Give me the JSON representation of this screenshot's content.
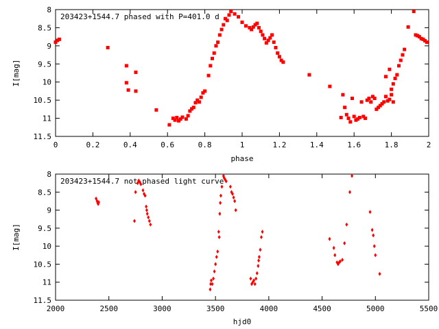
{
  "chart_data": [
    {
      "type": "scatter",
      "title": "203423+1544.7 phased with P=401.0 d",
      "xlabel": "phase",
      "ylabel": "I[mag]",
      "xlim": [
        0,
        2
      ],
      "ylim": [
        11.5,
        8
      ],
      "y_inverted": true,
      "xticks": [
        "0",
        "0.2",
        "0.4",
        "0.6",
        "0.8",
        "1",
        "1.2",
        "1.4",
        "1.6",
        "1.8",
        "2"
      ],
      "yticks": [
        "8",
        "8.5",
        "9",
        "9.5",
        "10",
        "10.5",
        "11",
        "11.5"
      ],
      "color": "#ff0000",
      "grid": false,
      "points": [
        [
          0.0,
          8.9
        ],
        [
          0.01,
          8.85
        ],
        [
          0.02,
          8.82
        ],
        [
          0.28,
          9.05
        ],
        [
          0.38,
          9.55
        ],
        [
          0.38,
          10.02
        ],
        [
          0.39,
          10.22
        ],
        [
          0.43,
          9.73
        ],
        [
          0.43,
          10.25
        ],
        [
          0.54,
          10.77
        ],
        [
          0.61,
          11.18
        ],
        [
          0.63,
          11.0
        ],
        [
          0.64,
          11.05
        ],
        [
          0.65,
          10.98
        ],
        [
          0.66,
          11.07
        ],
        [
          0.67,
          11.02
        ],
        [
          0.68,
          10.97
        ],
        [
          0.7,
          11.02
        ],
        [
          0.71,
          10.93
        ],
        [
          0.72,
          10.8
        ],
        [
          0.73,
          10.74
        ],
        [
          0.74,
          10.7
        ],
        [
          0.75,
          10.57
        ],
        [
          0.76,
          10.5
        ],
        [
          0.77,
          10.55
        ],
        [
          0.78,
          10.42
        ],
        [
          0.79,
          10.3
        ],
        [
          0.8,
          10.25
        ],
        [
          0.82,
          9.82
        ],
        [
          0.83,
          9.55
        ],
        [
          0.84,
          9.35
        ],
        [
          0.85,
          9.2
        ],
        [
          0.86,
          9.0
        ],
        [
          0.87,
          8.9
        ],
        [
          0.88,
          8.7
        ],
        [
          0.89,
          8.55
        ],
        [
          0.9,
          8.42
        ],
        [
          0.91,
          8.25
        ],
        [
          0.92,
          8.3
        ],
        [
          0.93,
          8.15
        ],
        [
          0.94,
          8.05
        ],
        [
          0.96,
          8.12
        ],
        [
          0.98,
          8.2
        ],
        [
          1.0,
          8.35
        ],
        [
          1.02,
          8.45
        ],
        [
          1.04,
          8.5
        ],
        [
          1.05,
          8.55
        ],
        [
          1.06,
          8.48
        ],
        [
          1.07,
          8.42
        ],
        [
          1.08,
          8.38
        ],
        [
          1.09,
          8.5
        ],
        [
          1.1,
          8.6
        ],
        [
          1.11,
          8.7
        ],
        [
          1.12,
          8.8
        ],
        [
          1.13,
          8.92
        ],
        [
          1.14,
          8.85
        ],
        [
          1.15,
          8.78
        ],
        [
          1.16,
          8.7
        ],
        [
          1.17,
          8.9
        ],
        [
          1.18,
          9.05
        ],
        [
          1.19,
          9.2
        ],
        [
          1.2,
          9.3
        ],
        [
          1.21,
          9.4
        ],
        [
          1.22,
          9.45
        ],
        [
          1.36,
          9.8
        ],
        [
          1.47,
          10.12
        ],
        [
          1.53,
          10.98
        ],
        [
          1.54,
          10.35
        ],
        [
          1.55,
          10.7
        ],
        [
          1.56,
          10.9
        ],
        [
          1.57,
          11.0
        ],
        [
          1.58,
          11.1
        ],
        [
          1.59,
          10.45
        ],
        [
          1.6,
          10.95
        ],
        [
          1.61,
          11.05
        ],
        [
          1.62,
          11.02
        ],
        [
          1.63,
          10.98
        ],
        [
          1.64,
          10.55
        ],
        [
          1.65,
          10.95
        ],
        [
          1.66,
          11.0
        ],
        [
          1.67,
          10.5
        ],
        [
          1.68,
          10.45
        ],
        [
          1.69,
          10.55
        ],
        [
          1.7,
          10.4
        ],
        [
          1.71,
          10.45
        ],
        [
          1.72,
          10.75
        ],
        [
          1.73,
          10.7
        ],
        [
          1.74,
          10.65
        ],
        [
          1.75,
          10.6
        ],
        [
          1.76,
          10.55
        ],
        [
          1.77,
          10.4
        ],
        [
          1.78,
          10.52
        ],
        [
          1.79,
          10.48
        ],
        [
          1.8,
          10.2
        ],
        [
          1.81,
          10.05
        ],
        [
          1.82,
          9.9
        ],
        [
          1.83,
          9.8
        ],
        [
          1.77,
          9.85
        ],
        [
          1.79,
          9.65
        ],
        [
          1.8,
          10.35
        ],
        [
          1.81,
          10.55
        ],
        [
          1.84,
          9.55
        ],
        [
          1.85,
          9.4
        ],
        [
          1.86,
          9.25
        ],
        [
          1.87,
          9.1
        ],
        [
          1.89,
          8.48
        ],
        [
          1.92,
          8.05
        ],
        [
          1.93,
          8.7
        ],
        [
          1.94,
          8.72
        ],
        [
          1.95,
          8.75
        ],
        [
          1.96,
          8.8
        ],
        [
          1.97,
          8.82
        ],
        [
          1.98,
          8.86
        ],
        [
          1.99,
          8.9
        ]
      ]
    },
    {
      "type": "scatter",
      "title": "203423+1544.7 not phased light curve",
      "xlabel": "hjd0",
      "ylabel": "I[mag]",
      "xlim": [
        2000,
        5500
      ],
      "ylim": [
        11.5,
        8
      ],
      "y_inverted": true,
      "xticks": [
        "2000",
        "2500",
        "3000",
        "3500",
        "4000",
        "4500",
        "5000",
        "5500"
      ],
      "yticks": [
        "8",
        "8.5",
        "9",
        "9.5",
        "10",
        "10.5",
        "11",
        "11.5"
      ],
      "color": "#ff0000",
      "grid": false,
      "points": [
        [
          2380,
          8.68
        ],
        [
          2390,
          8.75
        ],
        [
          2395,
          8.8
        ],
        [
          2400,
          8.83
        ],
        [
          2405,
          8.78
        ],
        [
          2740,
          9.3
        ],
        [
          2750,
          8.5
        ],
        [
          2770,
          8.25
        ],
        [
          2780,
          8.18
        ],
        [
          2790,
          8.22
        ],
        [
          2800,
          8.28
        ],
        [
          2820,
          8.45
        ],
        [
          2830,
          8.55
        ],
        [
          2840,
          8.6
        ],
        [
          2850,
          8.9
        ],
        [
          2855,
          9.0
        ],
        [
          2860,
          9.1
        ],
        [
          2870,
          9.2
        ],
        [
          2880,
          9.3
        ],
        [
          2890,
          9.4
        ],
        [
          3450,
          11.2
        ],
        [
          3455,
          11.05
        ],
        [
          3460,
          10.95
        ],
        [
          3470,
          11.05
        ],
        [
          3480,
          10.9
        ],
        [
          3490,
          10.7
        ],
        [
          3500,
          10.5
        ],
        [
          3510,
          10.3
        ],
        [
          3520,
          10.15
        ],
        [
          3530,
          9.6
        ],
        [
          3535,
          9.75
        ],
        [
          3540,
          9.1
        ],
        [
          3545,
          8.8
        ],
        [
          3550,
          8.6
        ],
        [
          3560,
          8.35
        ],
        [
          3575,
          8.05
        ],
        [
          3580,
          8.1
        ],
        [
          3590,
          8.15
        ],
        [
          3600,
          8.2
        ],
        [
          3640,
          8.35
        ],
        [
          3650,
          8.5
        ],
        [
          3660,
          8.55
        ],
        [
          3670,
          8.65
        ],
        [
          3680,
          8.75
        ],
        [
          3690,
          9.0
        ],
        [
          3830,
          10.9
        ],
        [
          3840,
          11.05
        ],
        [
          3850,
          11.0
        ],
        [
          3860,
          10.95
        ],
        [
          3870,
          11.05
        ],
        [
          3880,
          10.9
        ],
        [
          3890,
          10.75
        ],
        [
          3900,
          10.55
        ],
        [
          3905,
          10.4
        ],
        [
          3910,
          10.3
        ],
        [
          3920,
          10.1
        ],
        [
          3930,
          9.75
        ],
        [
          3940,
          9.6
        ],
        [
          4570,
          9.8
        ],
        [
          4610,
          10.05
        ],
        [
          4620,
          10.25
        ],
        [
          4640,
          10.45
        ],
        [
          4650,
          10.5
        ],
        [
          4660,
          10.45
        ],
        [
          4670,
          10.42
        ],
        [
          4690,
          10.38
        ],
        [
          4710,
          9.92
        ],
        [
          4730,
          9.4
        ],
        [
          4760,
          8.5
        ],
        [
          4780,
          8.05
        ],
        [
          4950,
          9.05
        ],
        [
          4970,
          9.55
        ],
        [
          4980,
          9.7
        ],
        [
          4990,
          10.0
        ],
        [
          5000,
          10.25
        ],
        [
          5040,
          10.77
        ]
      ]
    }
  ]
}
